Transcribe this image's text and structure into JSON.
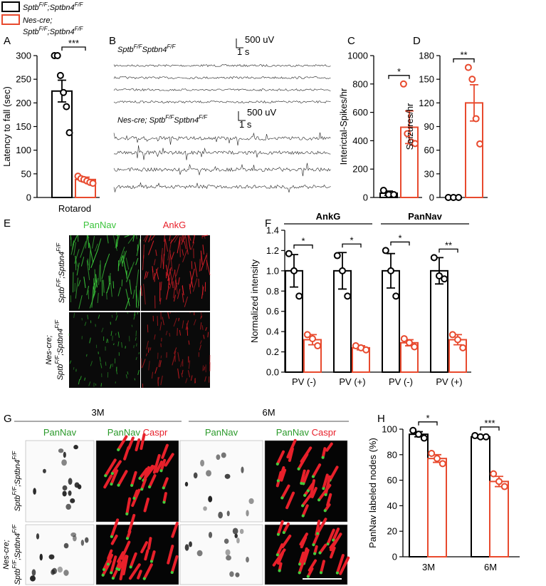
{
  "legend": [
    {
      "color": "#000000",
      "lines": [
        [
          "Sptb",
          "F/F",
          ";Sptbn4",
          "F/F"
        ]
      ]
    },
    {
      "color": "#e84a2e",
      "lines": [
        [
          "Nes-cre;"
        ],
        [
          "Sptb",
          "F/F",
          ";Sptbn4",
          "F/F"
        ]
      ]
    }
  ],
  "panels": [
    "A",
    "B",
    "C",
    "D",
    "E",
    "F",
    "G",
    "H"
  ],
  "eeg": {
    "control_label": [
      "Sptb",
      "F/F",
      "Sptbn4",
      "F/F"
    ],
    "mutant_label": [
      "Nes-cre; Sptb",
      "F/F",
      "Sptbn4",
      "F/F"
    ],
    "scale_v": "500 uV",
    "scale_t": "1 s"
  },
  "images_e": {
    "columns": [
      "PanNav",
      "AnkG"
    ],
    "rows": [
      [
        [
          "Sptb",
          "F/F",
          ";Sptbn4",
          "F/F"
        ]
      ],
      [
        [
          "Nes-cre;"
        ],
        [
          "Sptb",
          "F/F",
          ";Sptbn4",
          "F/F"
        ]
      ]
    ]
  },
  "images_g": {
    "ages": [
      "3M",
      "6M"
    ],
    "columns": [
      [
        "PanNav"
      ],
      [
        "PanNav",
        "Caspr"
      ],
      [
        "PanNav"
      ],
      [
        "PanNav",
        "Caspr"
      ]
    ],
    "rows": [
      [
        [
          "Sptb",
          "F/F",
          ";Sptbn4",
          "F/F"
        ]
      ],
      [
        [
          "Nes-cre;"
        ],
        [
          "Sptb",
          "F/F",
          ";Sptbn4",
          "F/F"
        ]
      ]
    ]
  },
  "chart_data": [
    {
      "type": "bar",
      "ylabel": "Latency to fall (sec)",
      "categories": [
        "Rotarod"
      ],
      "ylim": [
        0,
        300
      ],
      "yticks": [
        0,
        50,
        100,
        150,
        200,
        250,
        300
      ],
      "series": [
        {
          "color": "#000000",
          "values": [
            225
          ],
          "errors": [
            23
          ],
          "points": [
            [
              300,
              300,
              258,
              222,
              192,
              137
            ]
          ]
        },
        {
          "color": "#e84a2e",
          "values": [
            38
          ],
          "errors": [
            5
          ],
          "points": [
            [
              45,
              40,
              38,
              35,
              32,
              30
            ]
          ]
        }
      ],
      "significance": [
        "***"
      ]
    },
    {
      "type": "bar",
      "ylabel": "Interictal-Spikes/hr",
      "categories": [
        null
      ],
      "ylim": [
        0,
        1000
      ],
      "yticks": [
        0,
        200,
        400,
        600,
        800,
        1000
      ],
      "series": [
        {
          "color": "#000000",
          "values": [
            30
          ],
          "errors": [
            15
          ],
          "points": [
            [
              50,
              20,
              20
            ]
          ]
        },
        {
          "color": "#e84a2e",
          "values": [
            495
          ],
          "errors": [
            115
          ],
          "points": [
            [
              800,
              450,
              390,
              380
            ]
          ]
        }
      ],
      "significance": [
        "*"
      ]
    },
    {
      "type": "bar",
      "ylabel": "Seizures/hr",
      "categories": [
        null
      ],
      "ylim": [
        0,
        180
      ],
      "yticks": [
        0,
        30,
        60,
        90,
        120,
        150,
        180
      ],
      "series": [
        {
          "color": "#000000",
          "values": [
            0
          ],
          "errors": [
            0
          ],
          "points": [
            [
              0,
              0,
              0
            ]
          ]
        },
        {
          "color": "#e84a2e",
          "values": [
            120
          ],
          "errors": [
            23
          ],
          "points": [
            [
              165,
              150,
              100,
              68
            ]
          ]
        }
      ],
      "significance": [
        "**"
      ]
    },
    {
      "type": "bar",
      "ylabel": "Normalized intensity",
      "categories": [
        "PV (-)",
        "PV (+)",
        "PV (-)",
        "PV (+)"
      ],
      "ylim": [
        0,
        1.4
      ],
      "yticks": [
        {
          "value": 0,
          "label": "0.0"
        },
        0.2,
        0.4,
        0.6,
        0.8,
        {
          "value": 1,
          "label": "1.0"
        },
        1.2,
        1.4
      ],
      "groups": [
        {
          "label": "AnkG",
          "categories": [
            0,
            1
          ]
        },
        {
          "label": "PanNav",
          "categories": [
            2,
            3
          ]
        }
      ],
      "series": [
        {
          "color": "#000000",
          "values": [
            1.0,
            1.0,
            1.0,
            1.0
          ],
          "errors": [
            0.16,
            0.18,
            0.17,
            0.13
          ],
          "points": [
            [
              1.17,
              1.0,
              0.75
            ],
            [
              1.15,
              1.0,
              0.75
            ],
            [
              1.2,
              1.0,
              0.75
            ],
            [
              1.13,
              0.95,
              0.92
            ]
          ]
        },
        {
          "color": "#e84a2e",
          "values": [
            0.32,
            0.24,
            0.29,
            0.32
          ],
          "errors": [
            0.05,
            0.02,
            0.03,
            0.05
          ],
          "points": [
            [
              0.37,
              0.33,
              0.26
            ],
            [
              0.26,
              0.24,
              0.22
            ],
            [
              0.33,
              0.29,
              0.25
            ],
            [
              0.37,
              0.32,
              0.24
            ]
          ]
        }
      ],
      "significance": [
        "*",
        "*",
        "*",
        "**"
      ]
    },
    {
      "type": "bar",
      "ylabel": "PanNav labeled nodes (%)",
      "categories": [
        "3M",
        "6M"
      ],
      "ylim": [
        0,
        100
      ],
      "yticks": [
        0,
        20,
        40,
        60,
        80,
        100
      ],
      "series": [
        {
          "color": "#000000",
          "values": [
            96,
            94
          ],
          "errors": [
            2,
            1
          ],
          "points": [
            [
              99,
              96,
              93
            ],
            [
              95,
              94,
              94
            ]
          ]
        },
        {
          "color": "#e84a2e",
          "values": [
            77,
            59
          ],
          "errors": [
            3,
            4
          ],
          "points": [
            [
              81,
              77,
              73
            ],
            [
              65,
              59,
              55
            ]
          ]
        }
      ],
      "significance": [
        "*",
        "***"
      ]
    }
  ]
}
